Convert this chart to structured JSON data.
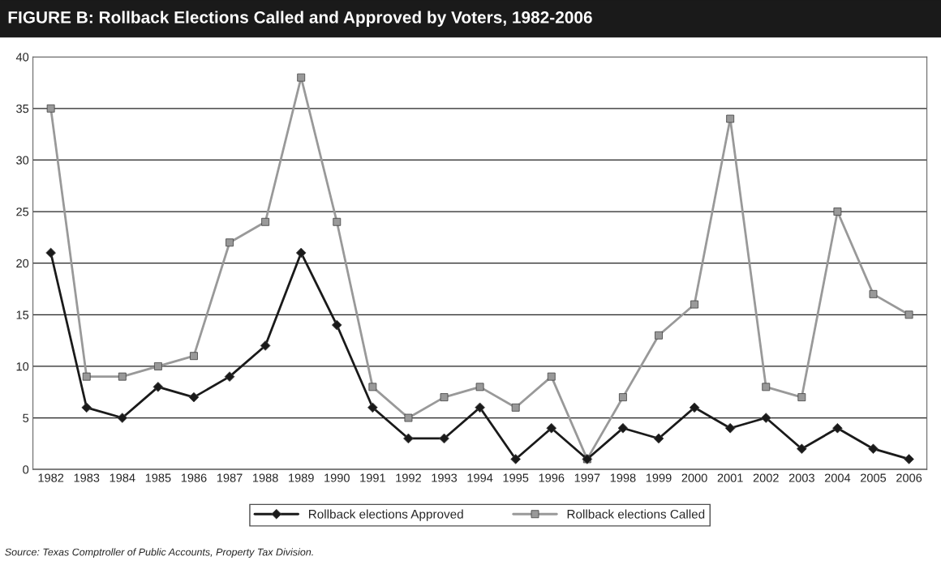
{
  "chart_data": {
    "type": "line",
    "title": "FIGURE B: Rollback Elections Called and Approved by Voters, 1982-2006",
    "categories": [
      "1982",
      "1983",
      "1984",
      "1985",
      "1986",
      "1987",
      "1988",
      "1989",
      "1990",
      "1991",
      "1992",
      "1993",
      "1994",
      "1995",
      "1996",
      "1997",
      "1998",
      "1999",
      "2000",
      "2001",
      "2002",
      "2003",
      "2004",
      "2005",
      "2006"
    ],
    "series": [
      {
        "name": "Rollback elections Approved",
        "color": "#1a1a1a",
        "marker": "diamond",
        "values": [
          21,
          6,
          5,
          8,
          7,
          9,
          12,
          21,
          14,
          6,
          3,
          3,
          6,
          1,
          4,
          1,
          4,
          3,
          6,
          4,
          5,
          2,
          4,
          2,
          1
        ]
      },
      {
        "name": "Rollback elections Called",
        "color": "#999999",
        "marker": "square",
        "values": [
          35,
          9,
          9,
          10,
          11,
          22,
          24,
          38,
          24,
          8,
          5,
          7,
          8,
          6,
          9,
          1,
          7,
          13,
          16,
          34,
          8,
          7,
          25,
          17,
          15
        ]
      }
    ],
    "ylim": [
      0,
      40
    ],
    "yticks": [
      0,
      5,
      10,
      15,
      20,
      25,
      30,
      35,
      40
    ],
    "grid": "y",
    "legend": "bottom",
    "line_style": "solid",
    "annotations": [
      "Source: Texas Comptroller of Public Accounts, Property Tax Division."
    ]
  }
}
